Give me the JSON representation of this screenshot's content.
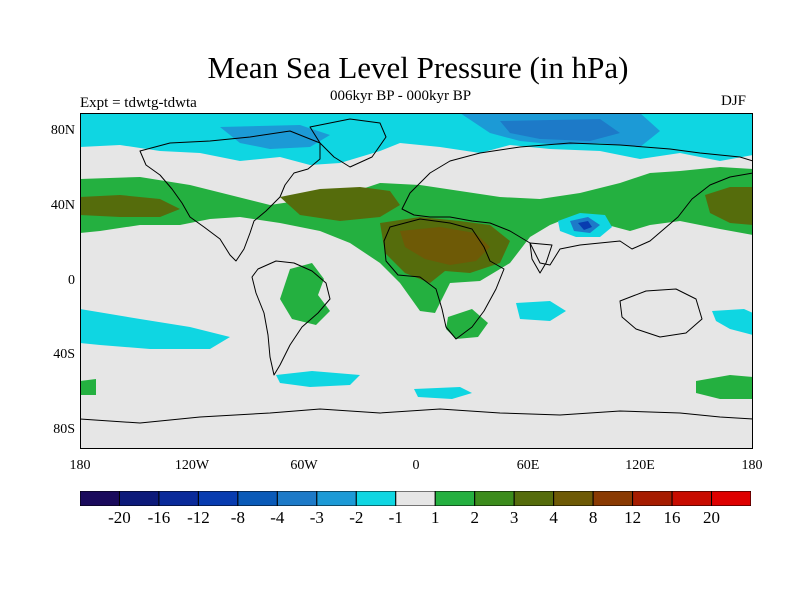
{
  "title": "Mean Sea Level Pressure (in hPa)",
  "subtitle": "006kyr BP - 000kyr BP",
  "experiment": "Expt = tdwtg-tdwta",
  "season": "DJF",
  "axes": {
    "lat_ticks": [
      "80N",
      "40N",
      "0",
      "40S",
      "80S"
    ],
    "lon_ticks": [
      "180",
      "120W",
      "60W",
      "0",
      "60E",
      "120E",
      "180"
    ]
  },
  "colorbar": {
    "colors": [
      "#1a0a5c",
      "#0d1a7a",
      "#0a2a9a",
      "#083cb0",
      "#0a5ab8",
      "#1d7ac8",
      "#1c9ad6",
      "#0fd6e2",
      "#e6e6e6",
      "#24b040",
      "#3c8c1c",
      "#556c0c",
      "#6e5a06",
      "#8a3a02",
      "#a61c00",
      "#c80c00",
      "#de0000"
    ],
    "labels": [
      "-20",
      "-16",
      "-12",
      "-8",
      "-4",
      "-3",
      "-2",
      "-1",
      "1",
      "2",
      "3",
      "4",
      "8",
      "12",
      "16",
      "20"
    ]
  },
  "colors": {
    "neutral": "#e6e6e6",
    "light_blue": "#0fd6e2",
    "mid_blue": "#1c9ad6",
    "blue": "#1d7ac8",
    "deep_blue": "#083cb0",
    "light_green": "#24b040",
    "dark_green": "#556c0c",
    "brown": "#6e5a06"
  }
}
